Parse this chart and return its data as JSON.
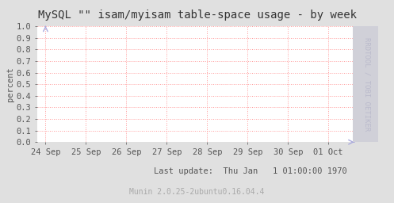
{
  "title": "MySQL \"\" isam/myisam table-space usage - by week",
  "ylabel": "percent",
  "footer": "Last update:  Thu Jan   1 01:00:00 1970",
  "munin_label": "Munin 2.0.25-2ubuntu0.16.04.4",
  "rrdtool_label": "RRDTOOL / TOBI OETIKER",
  "bg_color": "#e0e0e0",
  "plot_bg_color": "#ffffff",
  "grid_color": "#ff9999",
  "right_band_color": "#d0d0d8",
  "ylim": [
    0.0,
    1.0
  ],
  "yticks": [
    0.0,
    0.1,
    0.2,
    0.3,
    0.4,
    0.5,
    0.6,
    0.7,
    0.8,
    0.9,
    1.0
  ],
  "xtick_labels": [
    "24 Sep",
    "25 Sep",
    "26 Sep",
    "27 Sep",
    "28 Sep",
    "29 Sep",
    "30 Sep",
    "01 Oct"
  ],
  "xtick_positions": [
    0,
    1,
    2,
    3,
    4,
    5,
    6,
    7
  ],
  "xlim": [
    -0.2,
    7.6
  ],
  "arrow_color": "#aaaadd",
  "title_fontsize": 10,
  "axis_label_fontsize": 7.5,
  "tick_fontsize": 7.5,
  "footer_fontsize": 7.5,
  "munin_fontsize": 7,
  "rrdtool_fontsize": 6.5,
  "title_color": "#333333",
  "tick_color": "#555555",
  "footer_color": "#555555",
  "munin_color": "#aaaaaa",
  "rrdtool_color": "#bbbbcc"
}
